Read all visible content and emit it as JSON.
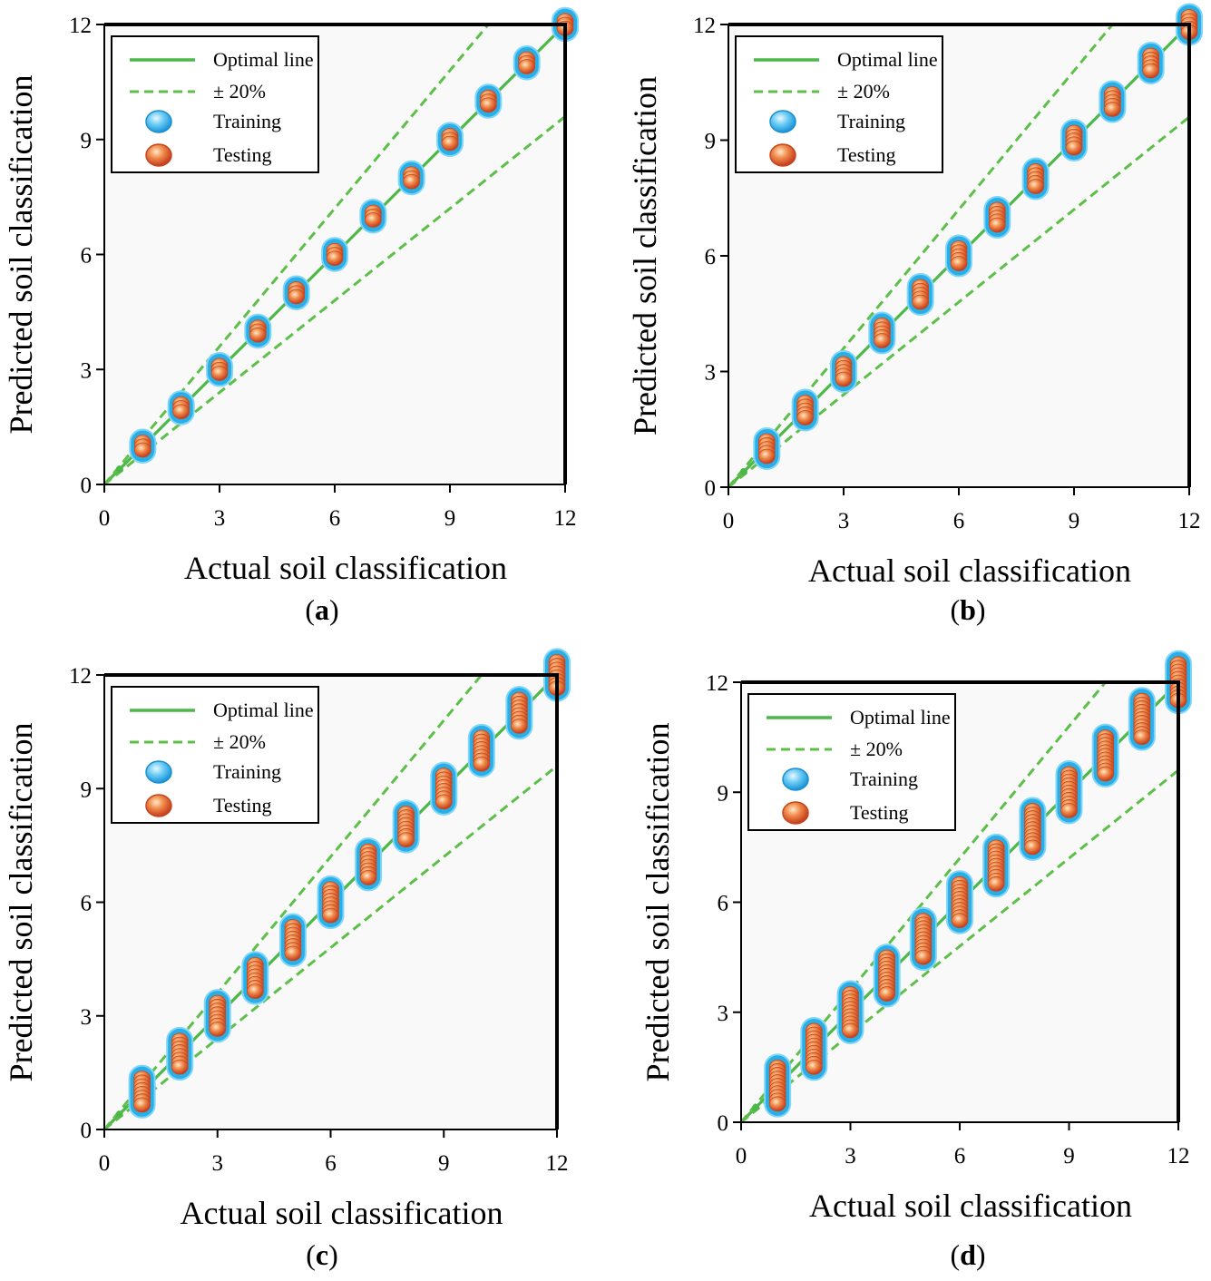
{
  "figure": {
    "panel_count": 4
  },
  "colors": {
    "optimal_line": "#4cb848",
    "band_line": "#5cbf48",
    "plot_bg": "#f9f9f9",
    "training_marker": "#2aaee8",
    "testing_marker": "#d9502a",
    "frame": "#000000"
  },
  "chart_data": [
    {
      "panel": "a",
      "type": "scatter",
      "xlabel": "Actual soil classification",
      "ylabel": "Predicted soil classification",
      "xlim": [
        0,
        12
      ],
      "ylim": [
        0,
        12
      ],
      "xticks": [
        0,
        3,
        6,
        9,
        12
      ],
      "yticks": [
        0,
        3,
        6,
        9,
        12
      ],
      "legend": {
        "position": "top-left",
        "entries": [
          "Optimal line",
          "± 20%",
          "Training",
          "Testing"
        ]
      },
      "reference_lines": [
        {
          "name": "Optimal line",
          "slope": 1.0,
          "style": "solid"
        },
        {
          "name": "+20%",
          "slope": 1.2,
          "style": "dashed"
        },
        {
          "name": "-20%",
          "slope": 0.8,
          "style": "dashed"
        }
      ],
      "series": [
        {
          "name": "Training",
          "x": [
            1,
            2,
            3,
            4,
            5,
            6,
            7,
            8,
            9,
            10,
            11,
            12
          ],
          "y": [
            1,
            2,
            3,
            4,
            5,
            6,
            7,
            8,
            9,
            10,
            11,
            12
          ],
          "stack_spread": 0.1
        },
        {
          "name": "Testing",
          "x": [
            1,
            2,
            3,
            4,
            5,
            6,
            7,
            8,
            9,
            10,
            11,
            12
          ],
          "y": [
            1,
            2,
            3,
            4,
            5,
            6,
            7,
            8,
            9,
            10,
            11,
            12
          ],
          "stack_spread": 0.1
        }
      ]
    },
    {
      "panel": "b",
      "type": "scatter",
      "xlabel": "Actual soil classification",
      "ylabel": "Predicted soil classification",
      "xlim": [
        0,
        12
      ],
      "ylim": [
        0,
        12
      ],
      "xticks": [
        0,
        3,
        6,
        9,
        12
      ],
      "yticks": [
        0,
        3,
        6,
        9,
        12
      ],
      "legend": {
        "position": "top-left",
        "entries": [
          "Optimal line",
          "± 20%",
          "Training",
          "Testing"
        ]
      },
      "reference_lines": [
        {
          "name": "Optimal line",
          "slope": 1.0,
          "style": "solid"
        },
        {
          "name": "+20%",
          "slope": 1.2,
          "style": "dashed"
        },
        {
          "name": "-20%",
          "slope": 0.8,
          "style": "dashed"
        }
      ],
      "series": [
        {
          "name": "Training",
          "x": [
            1,
            2,
            3,
            4,
            5,
            6,
            7,
            8,
            9,
            10,
            11,
            12
          ],
          "y": [
            1,
            2,
            3,
            4,
            5,
            6,
            7,
            8,
            9,
            10,
            11,
            12
          ],
          "stack_spread": 0.2
        },
        {
          "name": "Testing",
          "x": [
            1,
            2,
            3,
            4,
            5,
            6,
            7,
            8,
            9,
            10,
            11,
            12
          ],
          "y": [
            1,
            2,
            3,
            4,
            5,
            6,
            7,
            8,
            9,
            10,
            11,
            12
          ],
          "stack_spread": 0.2
        }
      ]
    },
    {
      "panel": "c",
      "type": "scatter",
      "xlabel": "Actual soil classification",
      "ylabel": "Predicted soil classification",
      "xlim": [
        0,
        12
      ],
      "ylim": [
        0,
        12
      ],
      "xticks": [
        0,
        3,
        6,
        9,
        12
      ],
      "yticks": [
        0,
        3,
        6,
        9,
        12
      ],
      "legend": {
        "position": "top-left",
        "entries": [
          "Optimal line",
          "± 20%",
          "Training",
          "Testing"
        ]
      },
      "reference_lines": [
        {
          "name": "Optimal line",
          "slope": 1.0,
          "style": "solid"
        },
        {
          "name": "+20%",
          "slope": 1.2,
          "style": "dashed"
        },
        {
          "name": "-20%",
          "slope": 0.8,
          "style": "dashed"
        }
      ],
      "series": [
        {
          "name": "Training",
          "x": [
            1,
            2,
            3,
            4,
            5,
            6,
            7,
            8,
            9,
            10,
            11,
            12
          ],
          "y": [
            1,
            2,
            3,
            4,
            5,
            6,
            7,
            8,
            9,
            10,
            11,
            12
          ],
          "stack_spread": 0.35
        },
        {
          "name": "Testing",
          "x": [
            1,
            2,
            3,
            4,
            5,
            6,
            7,
            8,
            9,
            10,
            11,
            12
          ],
          "y": [
            1,
            2,
            3,
            4,
            5,
            6,
            7,
            8,
            9,
            10,
            11,
            12
          ],
          "stack_spread": 0.35
        }
      ]
    },
    {
      "panel": "d",
      "type": "scatter",
      "xlabel": "Actual soil classification",
      "ylabel": "Predicted soil classification",
      "xlim": [
        0,
        12
      ],
      "ylim": [
        0,
        12
      ],
      "xticks": [
        0,
        3,
        6,
        9,
        12
      ],
      "yticks": [
        0,
        3,
        6,
        9,
        12
      ],
      "legend": {
        "position": "top-left",
        "entries": [
          "Optimal line",
          "± 20%",
          "Training",
          "Testing"
        ]
      },
      "reference_lines": [
        {
          "name": "Optimal line",
          "slope": 1.0,
          "style": "solid"
        },
        {
          "name": "+20%",
          "slope": 1.2,
          "style": "dashed"
        },
        {
          "name": "-20%",
          "slope": 0.8,
          "style": "dashed"
        }
      ],
      "series": [
        {
          "name": "Training",
          "x": [
            1,
            2,
            3,
            4,
            5,
            6,
            7,
            8,
            9,
            10,
            11,
            12
          ],
          "y": [
            1,
            2,
            3,
            4,
            5,
            6,
            7,
            8,
            9,
            10,
            11,
            12
          ],
          "stack_spread": 0.5
        },
        {
          "name": "Testing",
          "x": [
            1,
            2,
            3,
            4,
            5,
            6,
            7,
            8,
            9,
            10,
            11,
            12
          ],
          "y": [
            1,
            2,
            3,
            4,
            5,
            6,
            7,
            8,
            9,
            10,
            11,
            12
          ],
          "stack_spread": 0.5
        }
      ]
    }
  ]
}
